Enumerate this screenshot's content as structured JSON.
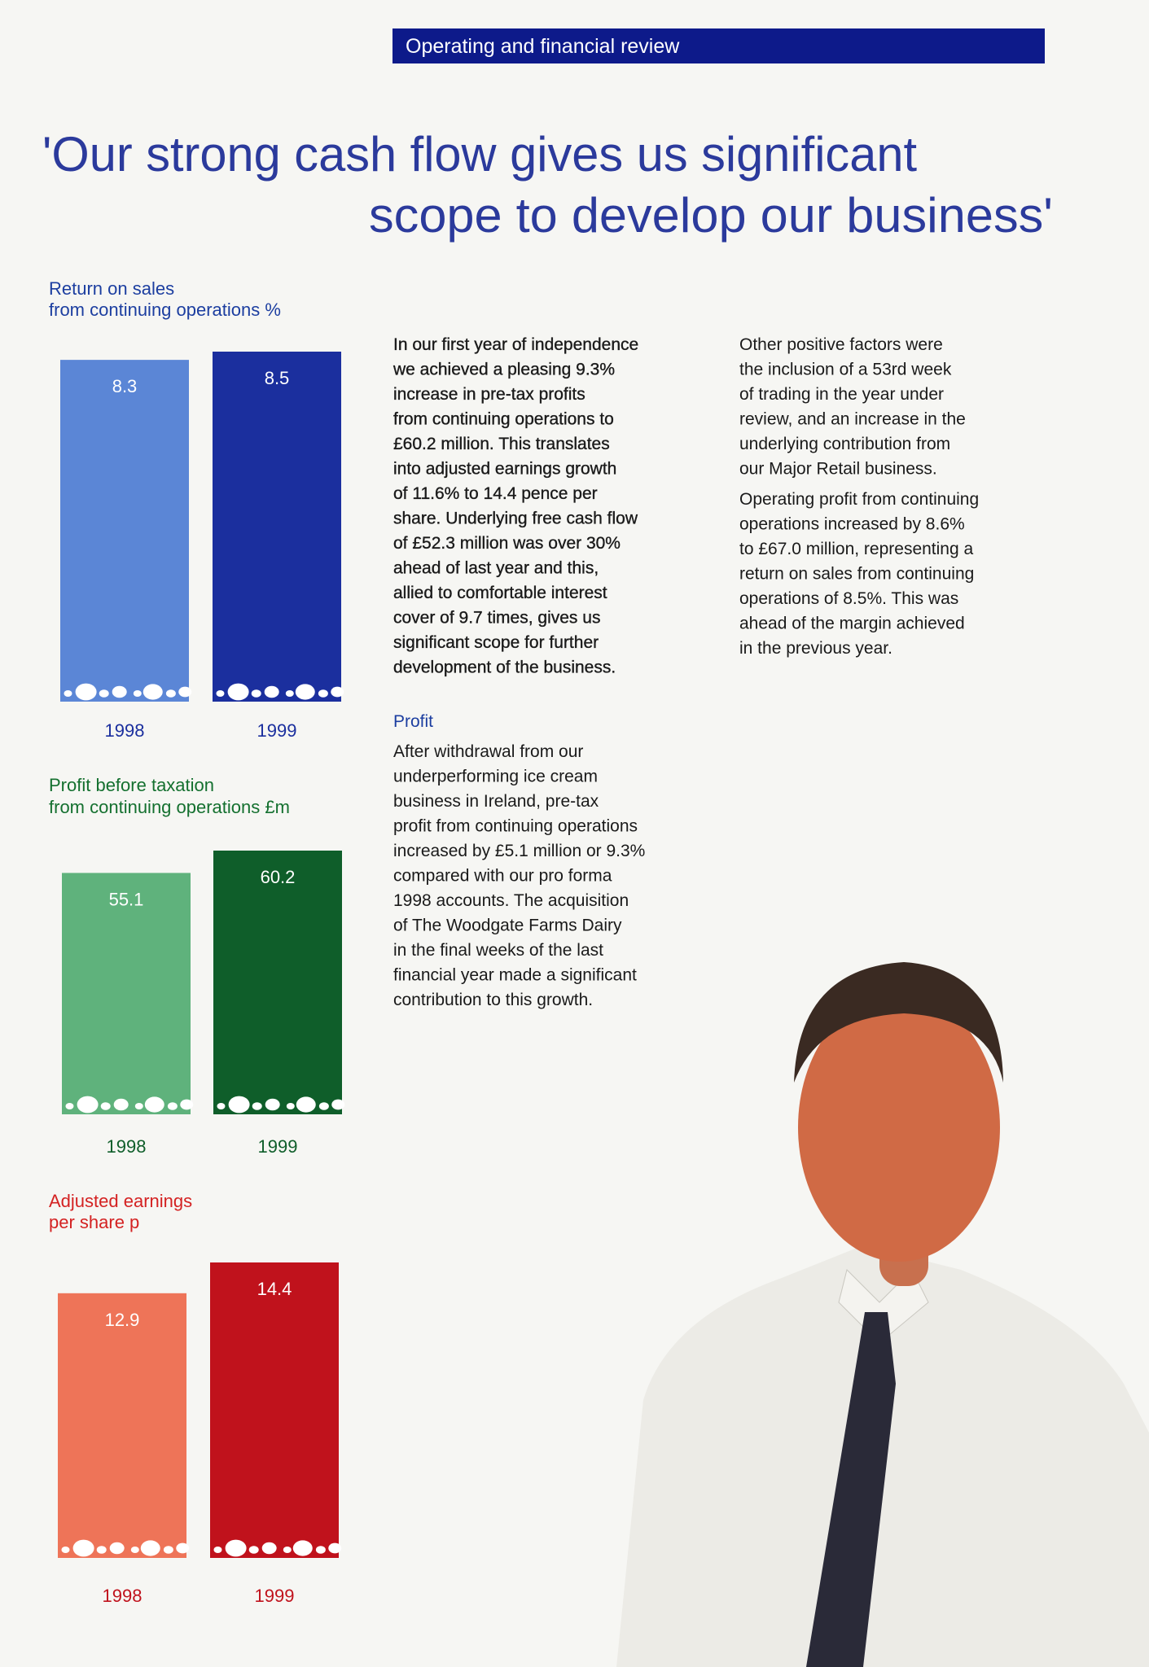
{
  "header": {
    "title": "Operating and financial review"
  },
  "quote": {
    "lines": [
      "'Our strong cash flow gives us significant",
      "scope to develop our business'"
    ]
  },
  "chart_data": [
    {
      "type": "bar",
      "title": [
        "Return on sales",
        "from continuing operations %"
      ],
      "categories": [
        "1998",
        "1999"
      ],
      "values": [
        8.3,
        8.5
      ],
      "colors": [
        "#5b86d6",
        "#1b2f9e"
      ],
      "label_color": "#1c3ea0"
    },
    {
      "type": "bar",
      "title": [
        "Profit before taxation",
        "from continuing operations £m"
      ],
      "categories": [
        "1998",
        "1999"
      ],
      "values": [
        55.1,
        60.2
      ],
      "colors": [
        "#5fb27c",
        "#0f5e2a"
      ],
      "label_color": "#14702f"
    },
    {
      "type": "bar",
      "title": [
        "Adjusted earnings",
        "per share p"
      ],
      "categories": [
        "1998",
        "1999"
      ],
      "values": [
        12.9,
        14.4
      ],
      "colors": [
        "#ee7458",
        "#c0121c"
      ],
      "label_color": "#d42222"
    }
  ],
  "text": {
    "col1": {
      "intro": [
        "In our first year of independence",
        "we achieved a pleasing 9.3%",
        "increase in pre-tax profits",
        "from continuing operations to",
        "£60.2 million. This translates",
        "into adjusted earnings growth",
        "of 11.6% to 14.4 pence per",
        "share. Underlying free cash flow",
        "of £52.3 million was over 30%",
        "ahead of last year and this,",
        "allied to comfortable interest",
        "cover of 9.7 times, gives us",
        "significant scope for further",
        "development of the business."
      ],
      "heading": "Profit",
      "profit": [
        "After withdrawal from our",
        "underperforming ice cream",
        "business in Ireland, pre-tax",
        "profit from continuing operations",
        "increased by £5.1 million or 9.3%",
        "compared with our pro forma",
        "1998 accounts. The acquisition",
        "of The Woodgate Farms Dairy",
        "in the final weeks of the last",
        "financial year made a significant",
        "contribution to this growth."
      ]
    },
    "col2": {
      "p1": [
        "Other positive factors were",
        "the inclusion of a 53rd week",
        "of trading in the year under",
        "review, and an increase in the",
        "underlying contribution from",
        "our Major Retail business."
      ],
      "p2": [
        "Operating profit from continuing",
        "operations increased by 8.6%",
        "to £67.0 million, representing a",
        "return on sales from continuing",
        "operations of 8.5%. This was",
        "ahead of the margin achieved",
        "in the previous year."
      ]
    }
  }
}
